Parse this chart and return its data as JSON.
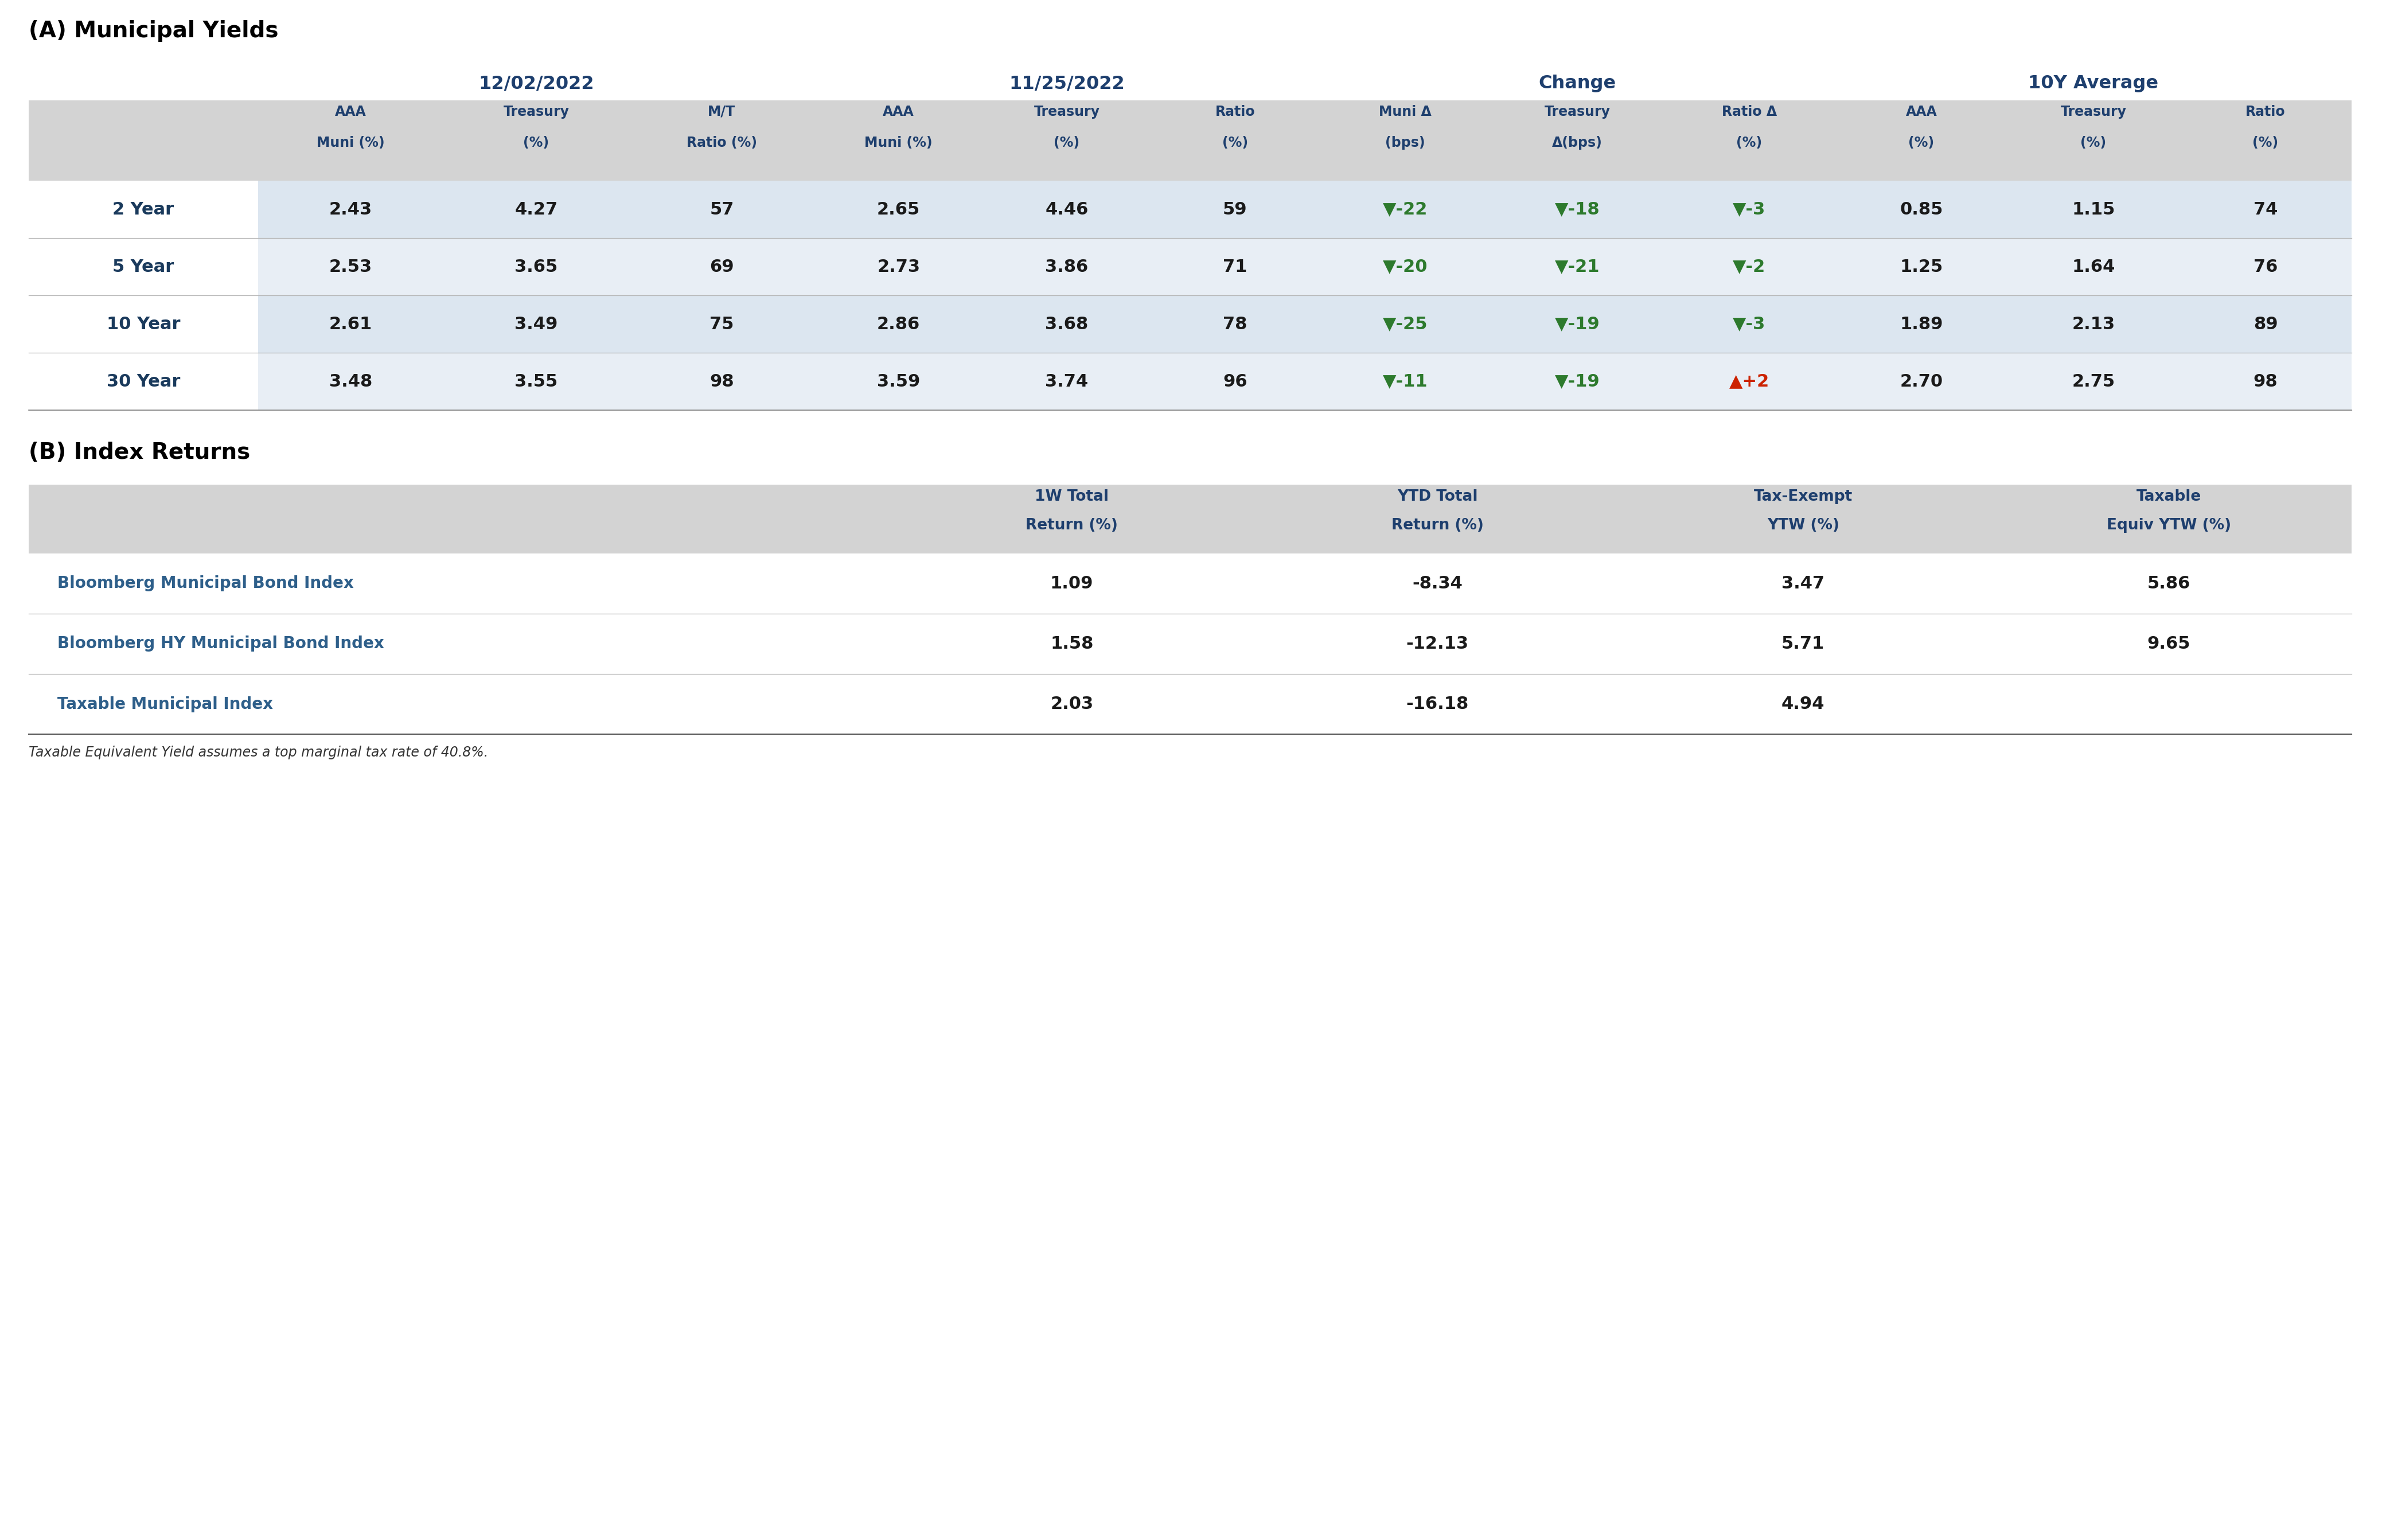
{
  "title_a": "(A) Municipal Yields",
  "title_b": "(B) Index Returns",
  "footnote": "Taxable Equivalent Yield assumes a top marginal tax rate of 40.8%.",
  "section_a": {
    "date1": "12/02/2022",
    "date2": "11/25/2022",
    "change_label": "Change",
    "avg_label": "10Y Average",
    "col_headers_line1": [
      "AAA",
      "Treasury",
      "M/T",
      "AAA",
      "Treasury",
      "Ratio",
      "Muni Δ",
      "Treasury",
      "Ratio Δ",
      "AAA",
      "Treasury",
      "Ratio"
    ],
    "col_headers_line2": [
      "Muni (%)",
      "(%)",
      "Ratio (%)",
      "Muni (%)",
      "(%)",
      "(%)",
      "(bps)",
      "Δ(bps)",
      "(%)",
      "(%)",
      "(%)",
      "(%)"
    ],
    "row_labels": [
      "2 Year",
      "5 Year",
      "10 Year",
      "30 Year"
    ],
    "data": [
      [
        "2.43",
        "4.27",
        "57",
        "2.65",
        "4.46",
        "59",
        "▼-22",
        "▼-18",
        "▼-3",
        "0.85",
        "1.15",
        "74"
      ],
      [
        "2.53",
        "3.65",
        "69",
        "2.73",
        "3.86",
        "71",
        "▼-20",
        "▼-21",
        "▼-2",
        "1.25",
        "1.64",
        "76"
      ],
      [
        "2.61",
        "3.49",
        "75",
        "2.86",
        "3.68",
        "78",
        "▼-25",
        "▼-19",
        "▼-3",
        "1.89",
        "2.13",
        "89"
      ],
      [
        "3.48",
        "3.55",
        "98",
        "3.59",
        "3.74",
        "96",
        "▼-11",
        "▼-19",
        "▲+2",
        "2.70",
        "2.75",
        "98"
      ]
    ],
    "arrow_colors": [
      [
        "black",
        "black",
        "black",
        "black",
        "black",
        "black",
        "green",
        "green",
        "green",
        "black",
        "black",
        "black"
      ],
      [
        "black",
        "black",
        "black",
        "black",
        "black",
        "black",
        "green",
        "green",
        "green",
        "black",
        "black",
        "black"
      ],
      [
        "black",
        "black",
        "black",
        "black",
        "black",
        "black",
        "green",
        "green",
        "green",
        "black",
        "black",
        "black"
      ],
      [
        "black",
        "black",
        "black",
        "black",
        "black",
        "black",
        "green",
        "green",
        "red",
        "black",
        "black",
        "black"
      ]
    ]
  },
  "section_b": {
    "col_headers_line1": [
      "1W Total",
      "YTD Total",
      "Tax-Exempt",
      "Taxable"
    ],
    "col_headers_line2": [
      "Return (%)",
      "Return (%)",
      "YTW (%)",
      "Equiv YTW (%)"
    ],
    "row_labels": [
      "Bloomberg Municipal Bond Index",
      "Bloomberg HY Municipal Bond Index",
      "Taxable Municipal Index"
    ],
    "data": [
      [
        "1.09",
        "-8.34",
        "3.47",
        "5.86"
      ],
      [
        "1.58",
        "-12.13",
        "5.71",
        "9.65"
      ],
      [
        "2.03",
        "-16.18",
        "4.94",
        ""
      ]
    ]
  },
  "colors": {
    "header_bg": "#d3d3d3",
    "row_bg_1": "#dce6f0",
    "row_bg_2": "#e8eef5",
    "header_blue": "#1e3f6e",
    "dark_blue": "#1a3a5c",
    "medium_blue": "#2e5f8a",
    "green": "#2d7a2d",
    "red": "#cc2200",
    "black": "#1a1a1a"
  }
}
